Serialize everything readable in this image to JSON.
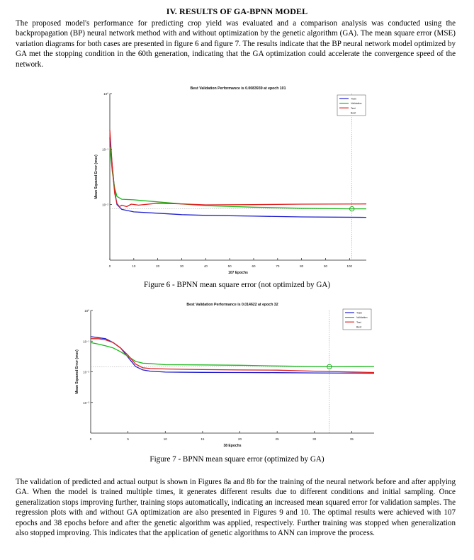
{
  "section": {
    "heading": "IV.  RESULTS OF GA-BPNN MODEL"
  },
  "paragraphs": {
    "intro": "The proposed model's performance for predicting crop yield was evaluated and a comparison analysis was conducted using the backpropagation (BP) neural network method with and without optimization by the genetic algorithm (GA). The mean square error (MSE) variation diagrams for both cases are presented in figure 6 and figure 7. The results indicate that the BP neural network model optimized by GA met the stopping condition in the 60th generation, indicating that the GA optimization could accelerate the convergence speed of the network.",
    "discussion": "The validation of predicted and actual output is shown in Figures 8a and 8b for the training of the neural network before and after applying GA. When the model is trained multiple times, it generates different results due to different conditions and initial sampling. Once generalization stops improving further, training stops automatically, indicating an increased mean squared error for validation samples. The regression plots with and without GA optimization are also presented in Figures 9 and 10. The optimal results were achieved with 107 epochs and 38 epochs before and after the genetic algorithm was applied, respectively. Further training was stopped when generalization also stopped improving. This indicates that the application of genetic algorithms to ANN can improve the process."
  },
  "captions": {
    "fig6": "Figure 6 - BPNN mean square error (not optimized by GA)",
    "fig7": "Figure 7 - BPNN mean square error (optimized by GA)"
  },
  "chart_data": [
    {
      "type": "line",
      "title": "Best Validation Performance is 0.0083939 at epoch 101",
      "xlabel": "107 Epochs",
      "ylabel": "Mean Squared Error (mse)",
      "y_scale": "log",
      "xlim": [
        0,
        107
      ],
      "ylim": [
        0.001,
        1
      ],
      "x_ticks": [
        0,
        10,
        20,
        30,
        40,
        50,
        60,
        70,
        80,
        90,
        100
      ],
      "y_tick_labels": [
        "10⁰",
        "10⁻¹",
        "10⁻²"
      ],
      "legend": [
        "Train",
        "Validation",
        "Test",
        "Best"
      ],
      "legend_position": "top-right",
      "best_epoch": 101,
      "best_value": 0.0083939,
      "colors": {
        "train": "#2020d0",
        "validation": "#18b818",
        "test": "#e02020",
        "best": "#18a018",
        "goal": "#999999"
      },
      "series": [
        {
          "name": "Train",
          "points": [
            [
              0,
              0.16
            ],
            [
              1,
              0.05
            ],
            [
              2,
              0.018
            ],
            [
              3,
              0.01
            ],
            [
              5,
              0.0082
            ],
            [
              10,
              0.0074
            ],
            [
              20,
              0.007
            ],
            [
              30,
              0.0066
            ],
            [
              40,
              0.0064
            ],
            [
              60,
              0.0062
            ],
            [
              80,
              0.006
            ],
            [
              107,
              0.0059
            ]
          ]
        },
        {
          "name": "Validation",
          "points": [
            [
              0,
              0.11
            ],
            [
              1,
              0.04
            ],
            [
              2,
              0.02
            ],
            [
              3,
              0.014
            ],
            [
              5,
              0.0125
            ],
            [
              10,
              0.0122
            ],
            [
              20,
              0.0112
            ],
            [
              30,
              0.0103
            ],
            [
              40,
              0.0096
            ],
            [
              60,
              0.009
            ],
            [
              80,
              0.0086
            ],
            [
              101,
              0.0083939
            ],
            [
              107,
              0.0084
            ]
          ]
        },
        {
          "name": "Test",
          "points": [
            [
              0,
              0.22
            ],
            [
              1,
              0.05
            ],
            [
              2,
              0.016
            ],
            [
              3,
              0.0105
            ],
            [
              4,
              0.0092
            ],
            [
              5,
              0.0098
            ],
            [
              7,
              0.0092
            ],
            [
              9,
              0.0102
            ],
            [
              12,
              0.0098
            ],
            [
              20,
              0.0106
            ],
            [
              30,
              0.0103
            ],
            [
              40,
              0.0099
            ],
            [
              60,
              0.01
            ],
            [
              80,
              0.0102
            ],
            [
              107,
              0.0103
            ]
          ]
        }
      ]
    },
    {
      "type": "line",
      "title": "Best Validation Performance is 0.014622 at epoch 32",
      "xlabel": "38 Epochs",
      "ylabel": "Mean Squared Error (mse)",
      "y_scale": "log",
      "xlim": [
        0,
        38
      ],
      "ylim": [
        0.0001,
        1
      ],
      "x_ticks": [
        0,
        5,
        10,
        15,
        20,
        25,
        30,
        35
      ],
      "y_tick_labels": [
        "10⁰",
        "10⁻¹",
        "10⁻²",
        "10⁻³"
      ],
      "legend": [
        "Train",
        "Validation",
        "Test",
        "Best"
      ],
      "legend_position": "top-right",
      "best_epoch": 32,
      "best_value": 0.014622,
      "colors": {
        "train": "#2020d0",
        "validation": "#18b818",
        "test": "#e02020",
        "best": "#18a018",
        "goal": "#999999"
      },
      "series": [
        {
          "name": "Train",
          "points": [
            [
              0,
              0.14
            ],
            [
              1,
              0.13
            ],
            [
              2,
              0.12
            ],
            [
              3,
              0.09
            ],
            [
              4,
              0.06
            ],
            [
              5,
              0.03
            ],
            [
              6,
              0.015
            ],
            [
              7,
              0.0115
            ],
            [
              8,
              0.0105
            ],
            [
              10,
              0.0098
            ],
            [
              15,
              0.0096
            ],
            [
              20,
              0.0095
            ],
            [
              25,
              0.0094
            ],
            [
              30,
              0.0092
            ],
            [
              38,
              0.009
            ]
          ]
        },
        {
          "name": "Validation",
          "points": [
            [
              0,
              0.09
            ],
            [
              1,
              0.08
            ],
            [
              2,
              0.07
            ],
            [
              3,
              0.06
            ],
            [
              4,
              0.045
            ],
            [
              5,
              0.032
            ],
            [
              6,
              0.022
            ],
            [
              7,
              0.019
            ],
            [
              8,
              0.0185
            ],
            [
              10,
              0.017
            ],
            [
              15,
              0.0168
            ],
            [
              20,
              0.0163
            ],
            [
              25,
              0.0155
            ],
            [
              32,
              0.014622
            ],
            [
              38,
              0.015
            ]
          ]
        },
        {
          "name": "Test",
          "points": [
            [
              0,
              0.12
            ],
            [
              1,
              0.12
            ],
            [
              2,
              0.11
            ],
            [
              3,
              0.09
            ],
            [
              4,
              0.06
            ],
            [
              5,
              0.035
            ],
            [
              6,
              0.018
            ],
            [
              7,
              0.0135
            ],
            [
              8,
              0.0128
            ],
            [
              10,
              0.0124
            ],
            [
              15,
              0.0118
            ],
            [
              20,
              0.0115
            ],
            [
              25,
              0.0113
            ],
            [
              30,
              0.0105
            ],
            [
              38,
              0.0095
            ]
          ]
        }
      ]
    }
  ]
}
